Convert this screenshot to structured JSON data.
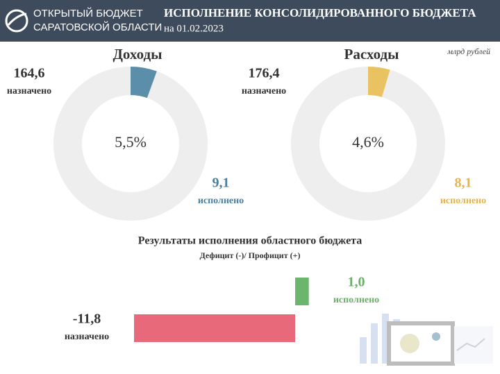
{
  "header": {
    "logo_lines": [
      "ОТКРЫТЫЙ БЮДЖЕТ",
      "САРАТОВСКОЙ ОБЛАСТИ"
    ],
    "title": "ИСПОЛНЕНИЕ КОНСОЛИДИРОВАННОГО БЮДЖЕТА",
    "date": "на 01.02.2023"
  },
  "units": "млрд рублей",
  "chart_data": [
    {
      "type": "donut",
      "title": "Доходы",
      "labels": [
        "назначено",
        "исполнено"
      ],
      "values": [
        164.6,
        9.1
      ],
      "value_labels": [
        "164,6",
        "9,1"
      ],
      "colors": [
        "#eeeeee",
        "#5b8ea8"
      ],
      "label_colors": [
        "#333333",
        "#4a7f9e"
      ],
      "percent": 5.5,
      "percent_label": "5,5%"
    },
    {
      "type": "donut",
      "title": "Расходы",
      "labels": [
        "назначено",
        "исполнено"
      ],
      "values": [
        176.4,
        8.1
      ],
      "value_labels": [
        "176,4",
        "8,1"
      ],
      "colors": [
        "#eeeeee",
        "#e9c262"
      ],
      "label_colors": [
        "#333333",
        "#e2b44a"
      ],
      "percent": 4.6,
      "percent_label": "4,6%"
    },
    {
      "type": "hbar",
      "title": "Результаты исполнения  областного бюджета",
      "subtitle": "Дефицит (-)/ Профицит (+)",
      "categories": [
        "исполнено",
        "назначено"
      ],
      "values": [
        1.0,
        -11.8
      ],
      "value_labels": [
        "1,0",
        "-11,8"
      ],
      "colors": [
        "#6cb56c",
        "#e8697a"
      ],
      "label_colors": [
        "#6aaf6a",
        "#333333"
      ]
    }
  ]
}
